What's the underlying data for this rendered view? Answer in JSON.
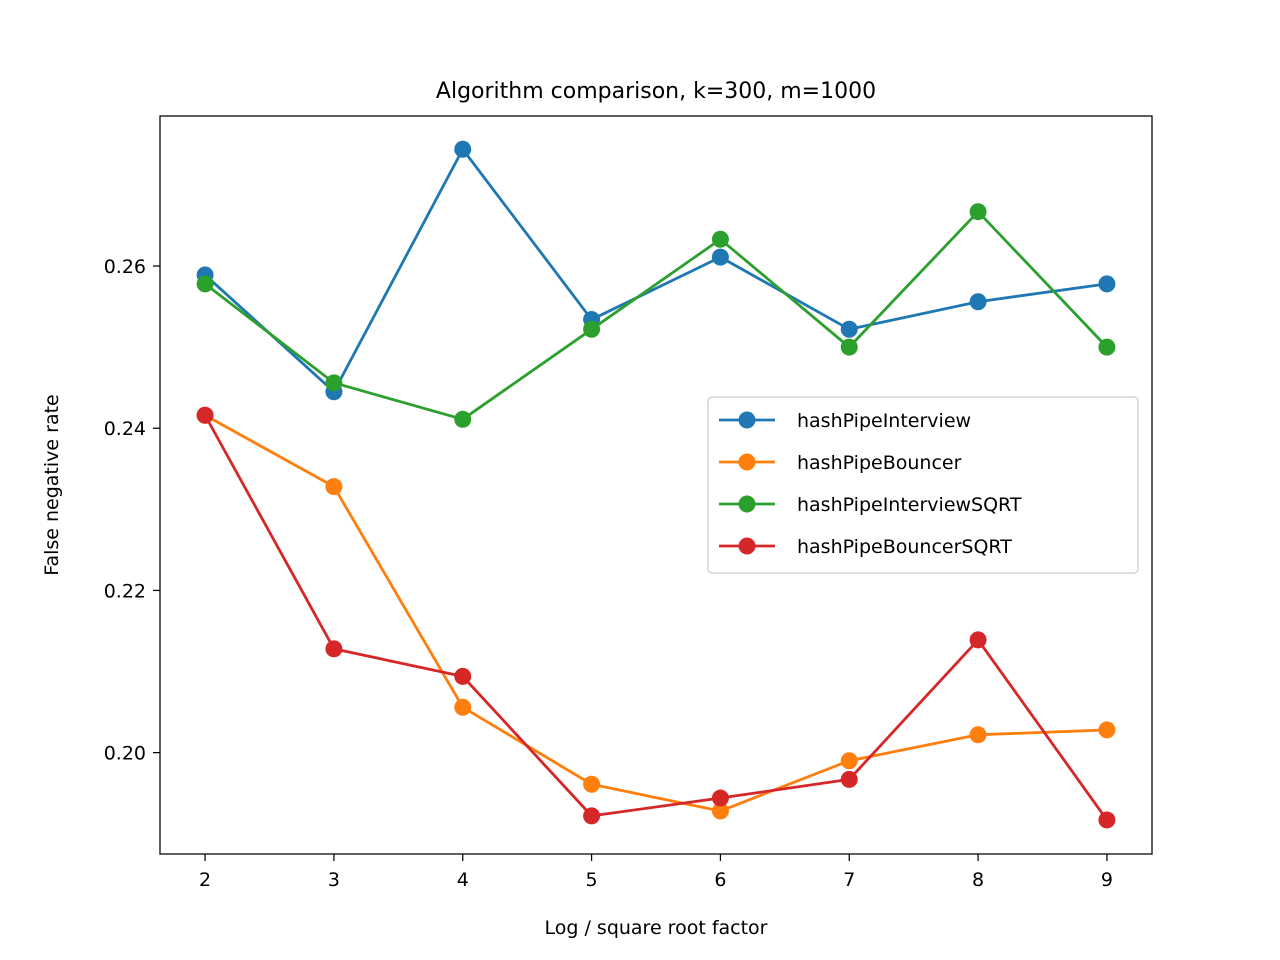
{
  "chart_data": {
    "type": "line",
    "title": "Algorithm comparison, k=300, m=1000",
    "xlabel": "Log / square root factor",
    "ylabel": "False negative rate",
    "x": [
      2,
      3,
      4,
      5,
      6,
      7,
      8,
      9
    ],
    "xlim": [
      1.65,
      9.35
    ],
    "ylim": [
      0.1875,
      0.2785
    ],
    "xticks": [
      2,
      3,
      4,
      5,
      6,
      7,
      8,
      9
    ],
    "yticks": [
      0.2,
      0.22,
      0.24,
      0.26
    ],
    "ytick_labels": [
      "0.20",
      "0.22",
      "0.24",
      "0.26"
    ],
    "grid": false,
    "legend_position": "center-right",
    "series": [
      {
        "name": "hashPipeInterview",
        "color": "#1f77b4",
        "values": [
          0.2589,
          0.2445,
          0.2744,
          0.2534,
          0.2611,
          0.2522,
          0.2556,
          0.2578
        ]
      },
      {
        "name": "hashPipeBouncer",
        "color": "#ff7f0e",
        "values": [
          0.2416,
          0.2328,
          0.2056,
          0.1961,
          0.1928,
          0.199,
          0.2022,
          0.2028
        ]
      },
      {
        "name": "hashPipeInterviewSQRT",
        "color": "#2ca02c",
        "values": [
          0.2578,
          0.2456,
          0.2411,
          0.2522,
          0.2633,
          0.25,
          0.2667,
          0.25
        ]
      },
      {
        "name": "hashPipeBouncerSQRT",
        "color": "#d62728",
        "values": [
          0.2416,
          0.2128,
          0.2094,
          0.1922,
          0.1944,
          0.1967,
          0.2139,
          0.1917
        ]
      }
    ]
  }
}
